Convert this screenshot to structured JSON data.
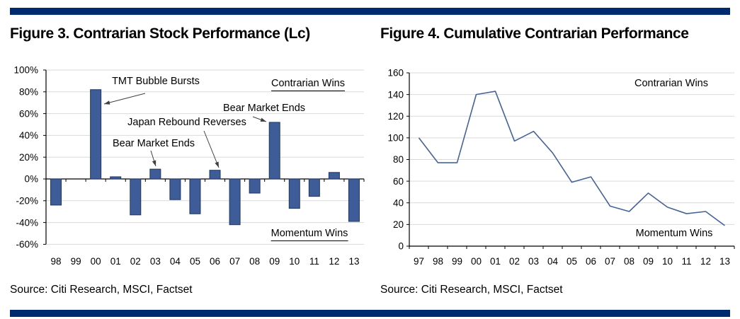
{
  "page": {
    "rule_color": "#002a70",
    "background": "#ffffff"
  },
  "figures": [
    {
      "title": "Figure 3. Contrarian Stock Performance (Lc)",
      "source": "Source: Citi Research, MSCI, Factset"
    },
    {
      "title": "Figure 4. Cumulative Contrarian Performance",
      "source": "Source: Citi Research, MSCI, Factset"
    }
  ],
  "chart_data": [
    {
      "type": "bar",
      "title": "Figure 3. Contrarian Stock Performance (Lc)",
      "categories": [
        "98",
        "99",
        "00",
        "01",
        "02",
        "03",
        "04",
        "05",
        "06",
        "07",
        "08",
        "09",
        "10",
        "11",
        "12",
        "13"
      ],
      "values": [
        -24,
        0,
        82,
        2,
        -33,
        9,
        -19,
        -32,
        8,
        -42,
        -13,
        52,
        -27,
        -16,
        6,
        -39
      ],
      "xlabel": "",
      "ylabel": "",
      "ylim": [
        -60,
        100
      ],
      "ytick_step": 20,
      "ytick_suffix": "%",
      "grid": true,
      "legend": "none",
      "annotations": [
        {
          "text": "TMT Bubble Bursts",
          "points_to_year": "00"
        },
        {
          "text": "Bear Market Ends",
          "points_to_year": "03"
        },
        {
          "text": "Japan Rebound Reverses",
          "points_to_year": "06"
        },
        {
          "text": "Bear Market Ends",
          "points_to_year": "09"
        }
      ],
      "region_labels": [
        {
          "text": "Contrarian Wins",
          "corner": "top-right",
          "underlined": true
        },
        {
          "text": "Momentum Wins",
          "corner": "bottom-right",
          "underlined": true
        }
      ],
      "colors": {
        "bar_fill": "#3e5c98",
        "bar_border": "#1f3864",
        "gridline": "#d9d9d9",
        "axis": "#000000",
        "arrow": "#404040"
      }
    },
    {
      "type": "line",
      "title": "Figure 4. Cumulative Contrarian Performance",
      "categories": [
        "97",
        "98",
        "99",
        "00",
        "01",
        "02",
        "03",
        "04",
        "05",
        "06",
        "07",
        "08",
        "09",
        "10",
        "11",
        "12",
        "13"
      ],
      "values": [
        100,
        77,
        77,
        140,
        143,
        97,
        106,
        86,
        59,
        64,
        37,
        32,
        49,
        36,
        30,
        32,
        19
      ],
      "xlabel": "",
      "ylabel": "",
      "ylim": [
        0,
        160
      ],
      "ytick_step": 20,
      "ytick_suffix": "",
      "grid": true,
      "legend": "none",
      "annotations": [],
      "region_labels": [
        {
          "text": "Contrarian Wins",
          "corner": "top-right",
          "underlined": false
        },
        {
          "text": "Momentum Wins",
          "corner": "bottom-right",
          "underlined": false
        }
      ],
      "colors": {
        "line": "#466399",
        "gridline": "#d9d9d9",
        "axis": "#000000"
      }
    }
  ]
}
